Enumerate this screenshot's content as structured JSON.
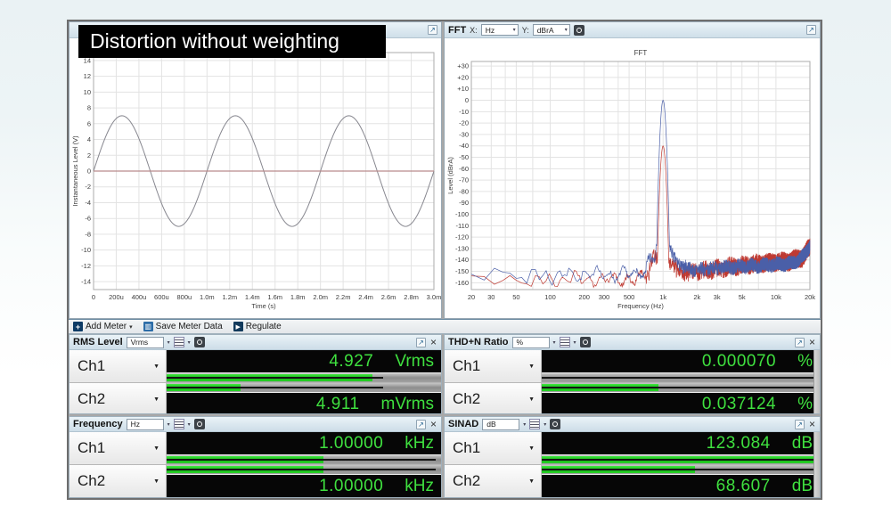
{
  "icons": {
    "export": "↗",
    "close": "×",
    "caret_down": "▾",
    "caret_small": "▼",
    "plus": "+",
    "save": "▥",
    "play": "▶"
  },
  "title_overlay": {
    "text": "Distortion without weighting"
  },
  "fft_panel": {
    "name": "FFT",
    "x_prefix": "X:",
    "x_unit": "Hz",
    "y_prefix": "Y:",
    "y_unit": "dBrA"
  },
  "toolbar": {
    "buttons": [
      {
        "label": "Add Meter"
      },
      {
        "label": "Save Meter Data"
      },
      {
        "label": "Regulate"
      }
    ]
  },
  "meters": [
    {
      "title": "RMS Level",
      "unit": "Vrms",
      "channels": [
        {
          "label": "Ch1",
          "value": "4.927",
          "unit": "Vrms",
          "bar_pct": 75,
          "peak_pct": 79
        },
        {
          "label": "Ch2",
          "value": "4.911",
          "unit": "mVrms",
          "bar_pct": 27,
          "peak_pct": 79
        }
      ]
    },
    {
      "title": "THD+N Ratio",
      "unit": "%",
      "channels": [
        {
          "label": "Ch1",
          "value": "0.000070",
          "unit": "%",
          "bar_pct": 0,
          "peak_pct": 100
        },
        {
          "label": "Ch2",
          "value": "0.037124",
          "unit": "%",
          "bar_pct": 42,
          "peak_pct": 100
        }
      ]
    },
    {
      "title": "Frequency",
      "unit": "Hz",
      "channels": [
        {
          "label": "Ch1",
          "value": "1.00000",
          "unit": "kHz",
          "bar_pct": 57,
          "peak_pct": 98
        },
        {
          "label": "Ch2",
          "value": "1.00000",
          "unit": "kHz",
          "bar_pct": 57,
          "peak_pct": 98
        }
      ]
    },
    {
      "title": "SINAD",
      "unit": "dB",
      "channels": [
        {
          "label": "Ch1",
          "value": "123.084",
          "unit": "dB",
          "bar_pct": 99,
          "peak_pct": 100
        },
        {
          "label": "Ch2",
          "value": "68.607",
          "unit": "dB",
          "bar_pct": 55,
          "peak_pct": 99
        }
      ]
    }
  ],
  "chart_data": [
    {
      "type": "line",
      "title": "",
      "xlabel": "Time (s)",
      "ylabel": "Instantaneous Level (V)",
      "xlim": [
        0,
        0.003
      ],
      "ylim": [
        -14,
        14
      ],
      "x_ticks": [
        "0",
        "200u",
        "400u",
        "600u",
        "800u",
        "1.0m",
        "1.2m",
        "1.4m",
        "1.6m",
        "1.8m",
        "2.0m",
        "2.2m",
        "2.4m",
        "2.6m",
        "2.8m",
        "3.0m"
      ],
      "y_ticks": [
        14,
        12,
        10,
        8,
        6,
        4,
        2,
        0,
        -2,
        -4,
        -6,
        -8,
        -10,
        -12,
        -14
      ],
      "grid": true,
      "series": [
        {
          "name": "Ch1",
          "shape": "sine",
          "amplitude_v": 7,
          "frequency_hz": 1000,
          "phase_deg": 0,
          "color": "#87878f"
        },
        {
          "name": "Ch2",
          "shape": "flat",
          "level_v": 0,
          "color": "#b98b8c"
        }
      ]
    },
    {
      "type": "line",
      "title": "FFT",
      "xlabel": "Frequency (Hz)",
      "ylabel": "Level (dBrA)",
      "x_scale": "log",
      "xlim": [
        20,
        20000
      ],
      "ylim": [
        -160,
        30
      ],
      "x_ticks": [
        {
          "f": 20,
          "label": "20"
        },
        {
          "f": 30,
          "label": "30"
        },
        {
          "f": 50,
          "label": "50"
        },
        {
          "f": 100,
          "label": "100"
        },
        {
          "f": 200,
          "label": "200"
        },
        {
          "f": 300,
          "label": "300"
        },
        {
          "f": 500,
          "label": "500"
        },
        {
          "f": 1000,
          "label": "1k"
        },
        {
          "f": 2000,
          "label": "2k"
        },
        {
          "f": 3000,
          "label": "3k"
        },
        {
          "f": 5000,
          "label": "5k"
        },
        {
          "f": 10000,
          "label": "10k"
        },
        {
          "f": 20000,
          "label": "20k"
        }
      ],
      "grid_freqs": [
        20,
        30,
        40,
        50,
        70,
        100,
        200,
        300,
        400,
        500,
        700,
        1000,
        2000,
        3000,
        4000,
        5000,
        7000,
        10000,
        20000
      ],
      "y_ticks": [
        30,
        20,
        10,
        0,
        -10,
        -20,
        -30,
        -40,
        -50,
        -60,
        -70,
        -80,
        -90,
        -100,
        -110,
        -120,
        -130,
        -140,
        -150,
        -160
      ],
      "grid": true,
      "series": [
        {
          "name": "Ch2",
          "color": "#bf3a32",
          "seed": 99,
          "bin_hz": 6,
          "peak": {
            "freq": 1000,
            "level": -40,
            "width_k": 40000
          },
          "wobble": 4,
          "jitter_low": 2.5,
          "jitter_high": 8,
          "envelope": [
            [
              20,
              -156
            ],
            [
              30,
              -161
            ],
            [
              45,
              -154
            ],
            [
              60,
              -161
            ],
            [
              85,
              -155
            ],
            [
              120,
              -160
            ],
            [
              170,
              -154
            ],
            [
              240,
              -160
            ],
            [
              330,
              -155
            ],
            [
              450,
              -159
            ],
            [
              600,
              -156
            ],
            [
              750,
              -150
            ],
            [
              850,
              -140
            ],
            [
              950,
              -136
            ],
            [
              1050,
              -136
            ],
            [
              1150,
              -141
            ],
            [
              1300,
              -148
            ],
            [
              1700,
              -151
            ],
            [
              2500,
              -149
            ],
            [
              4000,
              -146
            ],
            [
              6000,
              -144
            ],
            [
              9000,
              -142
            ],
            [
              13000,
              -141
            ],
            [
              17000,
              -138
            ],
            [
              20000,
              -129
            ]
          ]
        },
        {
          "name": "Ch1",
          "color": "#4a5fa8",
          "seed": 7,
          "bin_hz": 6,
          "peak": {
            "freq": 1000,
            "level": 0,
            "width_k": 40000
          },
          "wobble": 4.5,
          "jitter_low": 2.5,
          "jitter_high": 6,
          "envelope": [
            [
              20,
              -150
            ],
            [
              28,
              -157
            ],
            [
              40,
              -149
            ],
            [
              55,
              -158
            ],
            [
              75,
              -150
            ],
            [
              100,
              -157
            ],
            [
              140,
              -150
            ],
            [
              190,
              -156
            ],
            [
              260,
              -149
            ],
            [
              350,
              -156
            ],
            [
              480,
              -150
            ],
            [
              600,
              -154
            ],
            [
              720,
              -148
            ],
            [
              800,
              -138
            ],
            [
              870,
              -128
            ],
            [
              920,
              -134
            ],
            [
              960,
              -126
            ],
            [
              1040,
              -126
            ],
            [
              1090,
              -133
            ],
            [
              1150,
              -128
            ],
            [
              1250,
              -140
            ],
            [
              1500,
              -146
            ],
            [
              2000,
              -149
            ],
            [
              3000,
              -147
            ],
            [
              4500,
              -146
            ],
            [
              7000,
              -145
            ],
            [
              10000,
              -144
            ],
            [
              14000,
              -143
            ],
            [
              18000,
              -136
            ],
            [
              20000,
              -127
            ]
          ]
        }
      ]
    }
  ]
}
